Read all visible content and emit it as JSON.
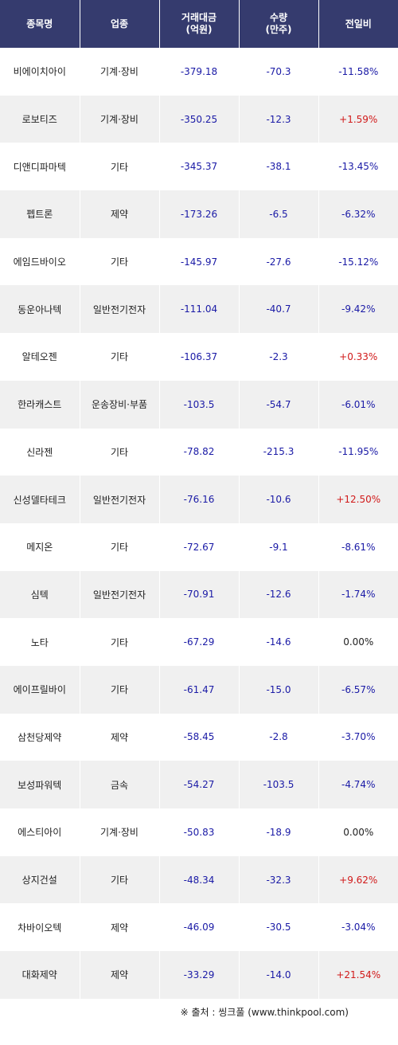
{
  "headers": [
    "종목명",
    "업종",
    "거래대금\n(억원)",
    "수량\n(만주)",
    "전일비"
  ],
  "rows": [
    {
      "name": "비에이치아이",
      "sector": "기계·장비",
      "amount": "-379.18",
      "volume": "-70.3",
      "change": "-11.58%"
    },
    {
      "name": "로보티즈",
      "sector": "기계·장비",
      "amount": "-350.25",
      "volume": "-12.3",
      "change": "+1.59%"
    },
    {
      "name": "디앤디파마텍",
      "sector": "기타",
      "amount": "-345.37",
      "volume": "-38.1",
      "change": "-13.45%"
    },
    {
      "name": "펩트론",
      "sector": "제약",
      "amount": "-173.26",
      "volume": "-6.5",
      "change": "-6.32%"
    },
    {
      "name": "에임드바이오",
      "sector": "기타",
      "amount": "-145.97",
      "volume": "-27.6",
      "change": "-15.12%"
    },
    {
      "name": "동운아나텍",
      "sector": "일반전기전자",
      "amount": "-111.04",
      "volume": "-40.7",
      "change": "-9.42%"
    },
    {
      "name": "알테오젠",
      "sector": "기타",
      "amount": "-106.37",
      "volume": "-2.3",
      "change": "+0.33%"
    },
    {
      "name": "한라캐스트",
      "sector": "운송장비·부품",
      "amount": "-103.5",
      "volume": "-54.7",
      "change": "-6.01%"
    },
    {
      "name": "신라젠",
      "sector": "기타",
      "amount": "-78.82",
      "volume": "-215.3",
      "change": "-11.95%"
    },
    {
      "name": "신성델타테크",
      "sector": "일반전기전자",
      "amount": "-76.16",
      "volume": "-10.6",
      "change": "+12.50%"
    },
    {
      "name": "메지온",
      "sector": "기타",
      "amount": "-72.67",
      "volume": "-9.1",
      "change": "-8.61%"
    },
    {
      "name": "심텍",
      "sector": "일반전기전자",
      "amount": "-70.91",
      "volume": "-12.6",
      "change": "-1.74%"
    },
    {
      "name": "노타",
      "sector": "기타",
      "amount": "-67.29",
      "volume": "-14.6",
      "change": "0.00%"
    },
    {
      "name": "에이프릴바이",
      "sector": "기타",
      "amount": "-61.47",
      "volume": "-15.0",
      "change": "-6.57%"
    },
    {
      "name": "삼천당제약",
      "sector": "제약",
      "amount": "-58.45",
      "volume": "-2.8",
      "change": "-3.70%"
    },
    {
      "name": "보성파워텍",
      "sector": "금속",
      "amount": "-54.27",
      "volume": "-103.5",
      "change": "-4.74%"
    },
    {
      "name": "에스티아이",
      "sector": "기계·장비",
      "amount": "-50.83",
      "volume": "-18.9",
      "change": "0.00%"
    },
    {
      "name": "상지건설",
      "sector": "기타",
      "amount": "-48.34",
      "volume": "-32.3",
      "change": "+9.62%"
    },
    {
      "name": "차바이오텍",
      "sector": "제약",
      "amount": "-46.09",
      "volume": "-30.5",
      "change": "-3.04%"
    },
    {
      "name": "대화제약",
      "sector": "제약",
      "amount": "-33.29",
      "volume": "-14.0",
      "change": "+21.54%"
    }
  ],
  "source": "※ 출처 : 씽크풀 (www.thinkpool.com)",
  "colors": {
    "header_bg": "#353b6e",
    "negative": "#1a1aa6",
    "positive": "#d11a1a",
    "stripe": "#f0f0f0"
  }
}
